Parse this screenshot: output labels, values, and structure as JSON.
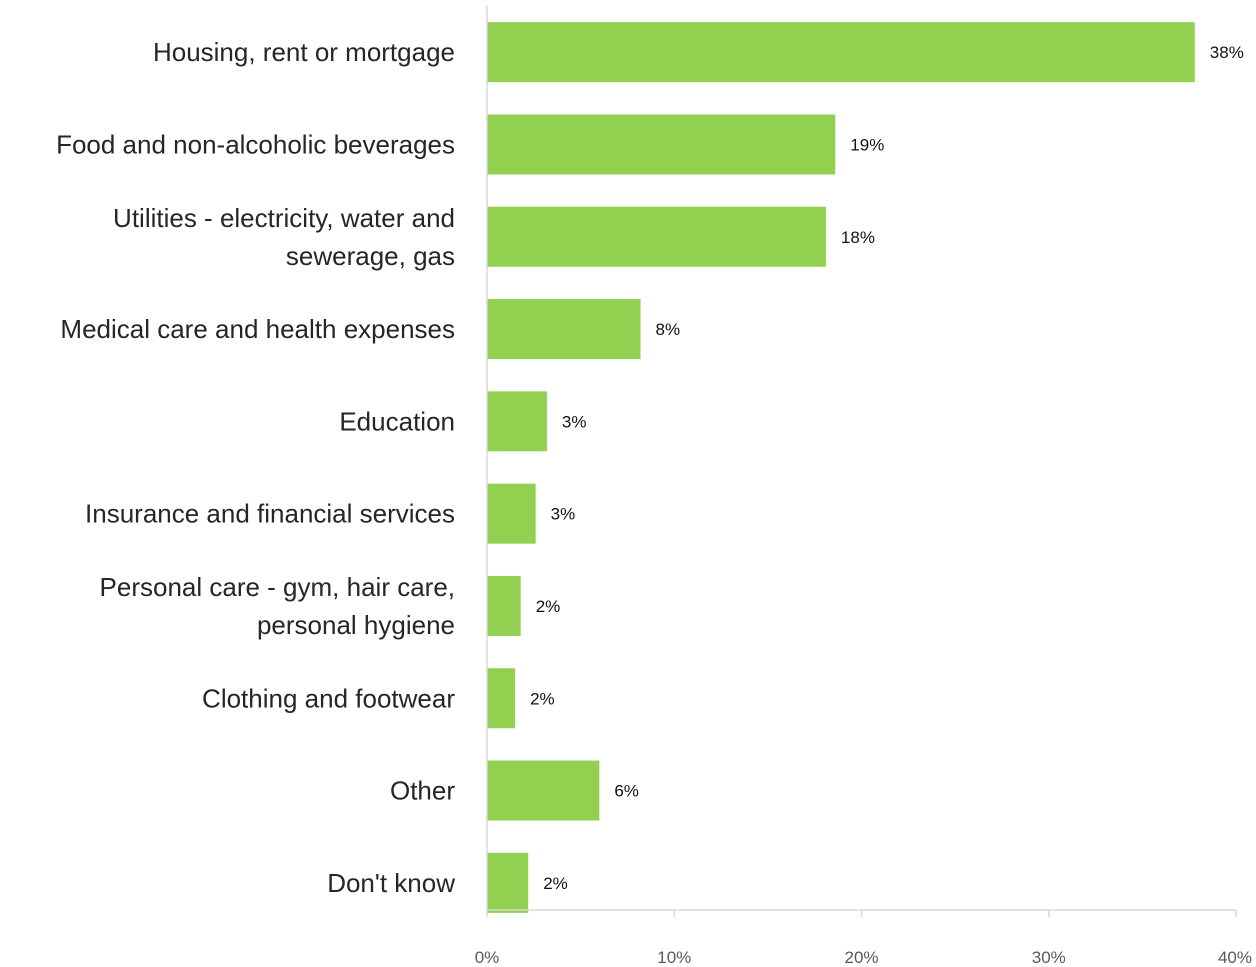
{
  "chart_data": {
    "type": "bar",
    "orientation": "horizontal",
    "title": "",
    "xlabel": "",
    "ylabel": "",
    "categories": [
      "Housing, rent or mortgage",
      "Food and non-alcoholic beverages",
      "Utilities - electricity, water and sewerage, gas",
      "Medical care and health expenses",
      "Education",
      "Insurance and financial services",
      "Personal care - gym, hair care, personal hygiene",
      "Clothing and footwear",
      "Other",
      "Don't know"
    ],
    "category_lines": [
      [
        "Housing, rent or mortgage"
      ],
      [
        "Food and non-alcoholic beverages"
      ],
      [
        "Utilities - electricity, water and",
        "sewerage, gas"
      ],
      [
        "Medical care and health expenses"
      ],
      [
        "Education"
      ],
      [
        "Insurance and financial services"
      ],
      [
        "Personal care - gym, hair care,",
        "personal hygiene"
      ],
      [
        "Clothing and footwear"
      ],
      [
        "Other"
      ],
      [
        "Don't know"
      ]
    ],
    "values": [
      37.8,
      18.6,
      18.1,
      8.2,
      3.2,
      2.6,
      1.8,
      1.5,
      6.0,
      2.2
    ],
    "data_labels": [
      "38%",
      "19%",
      "18%",
      "8%",
      "3%",
      "3%",
      "2%",
      "2%",
      "6%",
      "2%"
    ],
    "xlim": [
      0,
      40
    ],
    "x_ticks": [
      0,
      10,
      20,
      30,
      40
    ],
    "x_tick_labels": [
      "0%",
      "10%",
      "20%",
      "30%",
      "40%"
    ],
    "grid": false,
    "legend": "none",
    "colors": {
      "bar": "#92D050",
      "axis": "#D9D9D9",
      "category_text": "#262626",
      "tick_text": "#595959",
      "data_label_text": "#111111"
    }
  }
}
